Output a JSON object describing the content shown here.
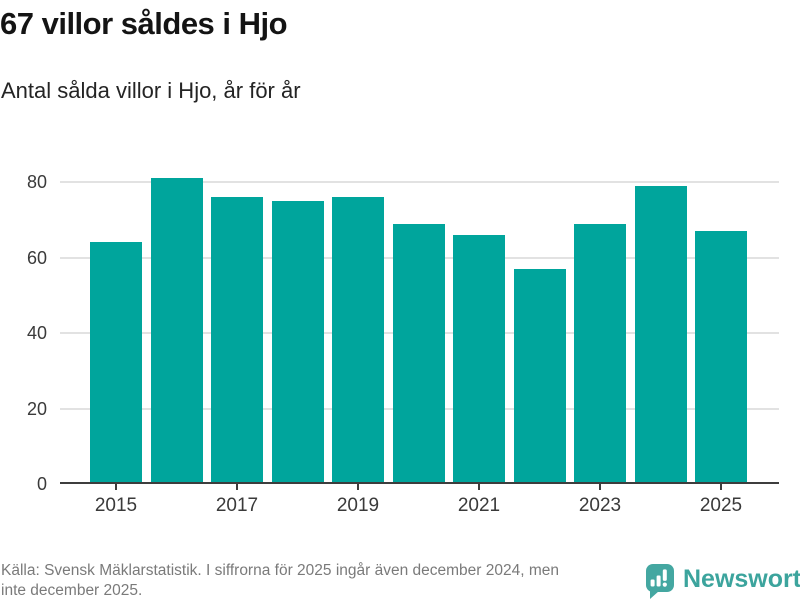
{
  "title": "67 villor såldes i Hjo",
  "subtitle": "Antal sålda villor i Hjo, år för år",
  "footer": {
    "line1": "Källa: Svensk Mäklarstatistik. I siffrorna för 2025 ingår även december 2024, men",
    "line2": "inte december 2025."
  },
  "branding": {
    "name": "Newsworthy",
    "logo_icon": "bar-chart-exclamation-speech-bubble"
  },
  "colors": {
    "bar": "#00a59c",
    "grid": "#e2e2e2",
    "axis": "#3d3d3d",
    "title_text": "#141414",
    "footer_text": "#7a7a7a",
    "brand_teal": "#44a7a1"
  },
  "chart_data": {
    "type": "bar",
    "title": "67 villor såldes i Hjo",
    "subtitle": "Antal sålda villor i Hjo, år för år",
    "categories": [
      "2015",
      "2016",
      "2017",
      "2018",
      "2019",
      "2020",
      "2021",
      "2022",
      "2023",
      "2024",
      "2025"
    ],
    "values": [
      64,
      81,
      76,
      75,
      76,
      69,
      66,
      57,
      69,
      79,
      67
    ],
    "x_tick_labels": [
      "2015",
      "2017",
      "2019",
      "2021",
      "2023",
      "2025"
    ],
    "x_tick_indices": [
      0,
      2,
      4,
      6,
      8,
      10
    ],
    "y_ticks": [
      0,
      20,
      40,
      60,
      80
    ],
    "ylim": [
      0,
      86
    ],
    "xlabel": "",
    "ylabel": "",
    "grid": "horizontal",
    "legend": "none",
    "bar_color": "#00a59c"
  }
}
